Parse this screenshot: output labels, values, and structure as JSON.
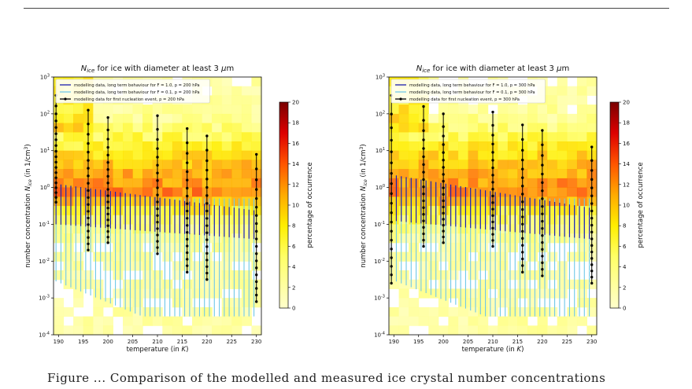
{
  "caption": "Figure ... Comparison of the modelled and measured ice crystal number concentrations",
  "chart_data": [
    {
      "type": "heatmap",
      "title": "N_ice for ice with diameter at least 3 μm",
      "title_main": "for ice with diameter at least 3 ",
      "xlabel": "temperature (in K)",
      "ylabel": "number concentration N_ice (in 1/cm³)",
      "colorbar_label": "percentage of occurrence",
      "colorbar_range": [
        0,
        20
      ],
      "colorbar_ticks": [
        0,
        2,
        4,
        6,
        8,
        10,
        12,
        14,
        16,
        18,
        20
      ],
      "xlim": [
        189,
        231
      ],
      "xticks": [
        190,
        195,
        200,
        205,
        210,
        215,
        220,
        225,
        230
      ],
      "ylim_log10": [
        -4,
        3
      ],
      "yticks_log10": [
        -4,
        -3,
        -2,
        -1,
        0,
        1,
        2,
        3
      ],
      "legend": [
        {
          "label": "modelling data, long term behaviour for F = 1.0,  p = 200 hPa",
          "color": "#1b1fb0",
          "style": "line"
        },
        {
          "label": "modelling data, long term behaviour for F = 0.1,  p = 200 hPa",
          "color": "#6fc8e8",
          "style": "line"
        },
        {
          "label": "modelling data for first nucleation event, p = 200 hPa",
          "color": "#000000",
          "style": "line-dot"
        }
      ],
      "long_term_F1": {
        "t_start": 189.5,
        "t_end": 229.5,
        "y_top_log10_start": 0.1,
        "y_top_log10_end": -0.62,
        "y_bottom_log10_start": -1.0,
        "y_bottom_log10_end": -1.4
      },
      "long_term_F01": {
        "t_start": 189.5,
        "t_end": 229.5,
        "y_top_log10": -0.3,
        "y_bottom_log10_start": -2.55,
        "y_bottom_log10_end": -3.5
      },
      "first_nucleation": [
        {
          "t": 189.5,
          "ymax": 2.5,
          "ymin": -0.4
        },
        {
          "t": 196,
          "ymax": 2.1,
          "ymin": -1.7
        },
        {
          "t": 200,
          "ymax": 1.9,
          "ymin": -1.5
        },
        {
          "t": 210,
          "ymax": 1.95,
          "ymin": -1.8
        },
        {
          "t": 216,
          "ymax": 1.6,
          "ymin": -2.3
        },
        {
          "t": 220,
          "ymax": 1.4,
          "ymin": -2.5
        },
        {
          "t": 230,
          "ymax": 0.9,
          "ymin": -3.1
        }
      ]
    },
    {
      "type": "heatmap",
      "title": "N_ice for ice with diameter at least 3 μm",
      "title_main": "for ice with diameter at least 3 ",
      "xlabel": "temperature (in K)",
      "ylabel": "number concentration N_ice (in 1/cm³)",
      "colorbar_label": "percentage of occurrence",
      "colorbar_range": [
        0,
        20
      ],
      "colorbar_ticks": [
        0,
        2,
        4,
        6,
        8,
        10,
        12,
        14,
        16,
        18,
        20
      ],
      "xlim": [
        189,
        231
      ],
      "xticks": [
        190,
        195,
        200,
        205,
        210,
        215,
        220,
        225,
        230
      ],
      "ylim_log10": [
        -4,
        3
      ],
      "yticks_log10": [
        -4,
        -3,
        -2,
        -1,
        0,
        1,
        2,
        3
      ],
      "legend": [
        {
          "label": "modelling data, long term behaviour for F = 1.0,  p = 300 hPa",
          "color": "#1b1fb0",
          "style": "line"
        },
        {
          "label": "modelling data, long term behaviour for F = 0.1,  p = 300 hPa",
          "color": "#6fc8e8",
          "style": "line"
        },
        {
          "label": "modelling data for first nucleation event, p = 300 hPa",
          "color": "#000000",
          "style": "line-dot"
        }
      ],
      "long_term_F1": {
        "t_start": 189.5,
        "t_end": 229.5,
        "y_top_log10_start": 0.35,
        "y_top_log10_end": -0.55,
        "y_bottom_log10_start": -0.9,
        "y_bottom_log10_end": -1.4
      },
      "long_term_F01": {
        "t_start": 189.5,
        "t_end": 229.5,
        "y_top_log10": -0.3,
        "y_bottom_log10_start": -2.5,
        "y_bottom_log10_end": -3.4
      },
      "first_nucleation": [
        {
          "t": 189.5,
          "ymax": 2.5,
          "ymin": -2.6
        },
        {
          "t": 196,
          "ymax": 2.2,
          "ymin": -1.6
        },
        {
          "t": 200,
          "ymax": 2.0,
          "ymin": -1.5
        },
        {
          "t": 210,
          "ymax": 2.05,
          "ymin": -1.6
        },
        {
          "t": 216,
          "ymax": 1.7,
          "ymin": -2.3
        },
        {
          "t": 220,
          "ymax": 1.55,
          "ymin": -2.4
        },
        {
          "t": 230,
          "ymax": 1.1,
          "ymin": -2.6
        }
      ]
    }
  ]
}
